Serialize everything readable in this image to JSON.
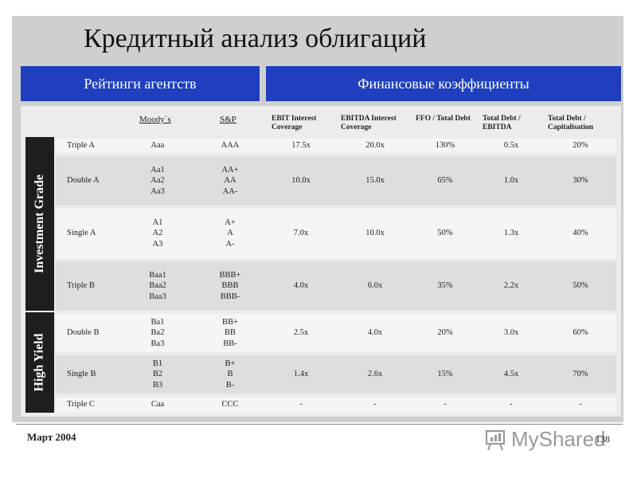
{
  "title": "Кредитный анализ облигаций",
  "header_left": "Рейтинги агентств",
  "header_right": "Финансовые коэффициенты",
  "columns": {
    "moodys": "Moody`s",
    "sp": "S&P",
    "ebit": "EBIT Interest Coverage",
    "ebitda": "EBITDA Interest Coverage",
    "ffo": "FFO / Total Debt",
    "debt_ebitda": "Total Debt / EBITDA",
    "debt_cap": "Total Debt / Capitalisation"
  },
  "groups": [
    "Investment Grade",
    "High Yield"
  ],
  "rows": [
    {
      "name": "Triple A",
      "moodys": "Aaa",
      "sp": "AAA",
      "ebit": "17.5x",
      "ebitda": "20.0x",
      "ffo": "130%",
      "debt_ebitda": "0.5x",
      "debt_cap": "20%"
    },
    {
      "name": "Double A",
      "moodys": "Aa1\nAa2\nAa3",
      "sp": "AA+\nAA\nAA-",
      "ebit": "10.0x",
      "ebitda": "15.0x",
      "ffo": "65%",
      "debt_ebitda": "1.0x",
      "debt_cap": "30%"
    },
    {
      "name": "Single A",
      "moodys": "A1\nA2\nA3",
      "sp": "A+\nA\nA-",
      "ebit": "7.0x",
      "ebitda": "10.0x",
      "ffo": "50%",
      "debt_ebitda": "1.3x",
      "debt_cap": "40%"
    },
    {
      "name": "Triple B",
      "moodys": "Baa1\nBaa2\nBaa3",
      "sp": "BBB+\nBBB\nBBB-",
      "ebit": "4.0x",
      "ebitda": "6.0x",
      "ffo": "35%",
      "debt_ebitda": "2.2x",
      "debt_cap": "50%"
    },
    {
      "name": "Double B",
      "moodys": "Ba1\nBa2\nBa3",
      "sp": "BB+\nBB\nBB-",
      "ebit": "2.5x",
      "ebitda": "4.0x",
      "ffo": "20%",
      "debt_ebitda": "3.0x",
      "debt_cap": "60%"
    },
    {
      "name": "Single B",
      "moodys": "B1\nB2\nB3",
      "sp": "B+\nB\nB-",
      "ebit": "1.4x",
      "ebitda": "2.6x",
      "ffo": "15%",
      "debt_ebitda": "4.5x",
      "debt_cap": "70%"
    },
    {
      "name": "Triple C",
      "moodys": "Caa",
      "sp": "CCC",
      "ebit": "-",
      "ebitda": "-",
      "ffo": "-",
      "debt_ebitda": "-",
      "debt_cap": "-"
    }
  ],
  "footer": {
    "date": "Март 2004",
    "page": "138",
    "logo": "MyShared",
    "logo_icon": "presentation-board-icon"
  }
}
